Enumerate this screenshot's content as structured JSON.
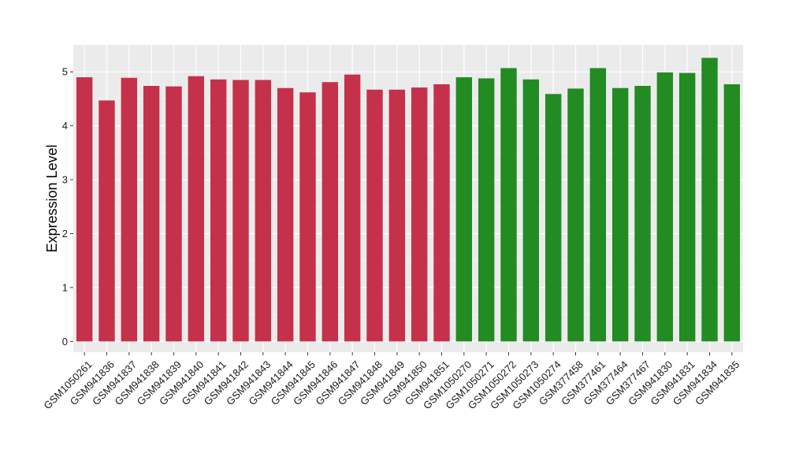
{
  "chart_data": {
    "type": "bar",
    "title": "",
    "xlabel": "",
    "ylabel": "Expression Level",
    "ylim": [
      -0.2,
      5.5
    ],
    "yticks": [
      0,
      1,
      2,
      3,
      4,
      5
    ],
    "grid": true,
    "legend": "none",
    "panel_background": "#ebebeb",
    "categories": [
      "GSM1050261",
      "GSM941836",
      "GSM941837",
      "GSM941838",
      "GSM941839",
      "GSM941840",
      "GSM941841",
      "GSM941842",
      "GSM941843",
      "GSM941844",
      "GSM941845",
      "GSM941846",
      "GSM941847",
      "GSM941848",
      "GSM941849",
      "GSM941850",
      "GSM941851",
      "GSM1050270",
      "GSM1050271",
      "GSM1050272",
      "GSM1050273",
      "GSM1050274",
      "GSM377458",
      "GSM377461",
      "GSM377464",
      "GSM377467",
      "GSM941830",
      "GSM941831",
      "GSM941834",
      "GSM941835"
    ],
    "values": [
      4.9,
      4.47,
      4.89,
      4.74,
      4.73,
      4.92,
      4.86,
      4.85,
      4.85,
      4.7,
      4.62,
      4.81,
      4.95,
      4.67,
      4.67,
      4.71,
      4.77,
      4.9,
      4.88,
      5.07,
      4.86,
      4.59,
      4.69,
      5.07,
      4.7,
      4.74,
      4.99,
      4.98,
      5.26,
      4.77
    ],
    "group_colors": {
      "red": "#c5314a",
      "green": "#228b22"
    },
    "bar_groups": [
      "red",
      "red",
      "red",
      "red",
      "red",
      "red",
      "red",
      "red",
      "red",
      "red",
      "red",
      "red",
      "red",
      "red",
      "red",
      "red",
      "red",
      "green",
      "green",
      "green",
      "green",
      "green",
      "green",
      "green",
      "green",
      "green",
      "green",
      "green",
      "green",
      "green"
    ]
  }
}
